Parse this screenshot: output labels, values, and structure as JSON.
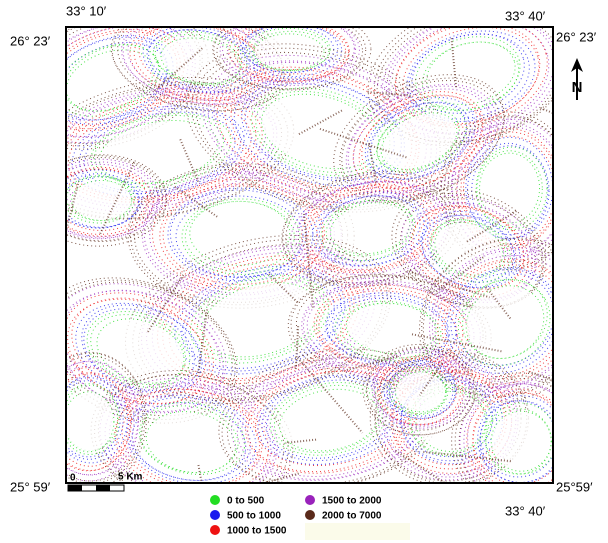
{
  "map": {
    "coordinates": {
      "top_left_lon": "33° 10′",
      "top_left_lat": "26° 23′",
      "top_right_lon": "33° 40′",
      "top_right_lat": "26° 23′",
      "bottom_left_lat": "25° 59′",
      "bottom_right_lat": "25°59′",
      "bottom_right_lon": "33° 40′"
    },
    "north_label": "N",
    "scale": {
      "start": "0",
      "end": "5 Km"
    },
    "legend": [
      {
        "label": "0 to 500",
        "color": "#22dd22"
      },
      {
        "label": "500 to 1000",
        "color": "#1a1aee"
      },
      {
        "label": "1000 to 1500",
        "color": "#ee1111"
      },
      {
        "label": "1500 to 2000",
        "color": "#9922bb"
      },
      {
        "label": "2000 to 7000",
        "color": "#5a2a1a"
      }
    ]
  }
}
